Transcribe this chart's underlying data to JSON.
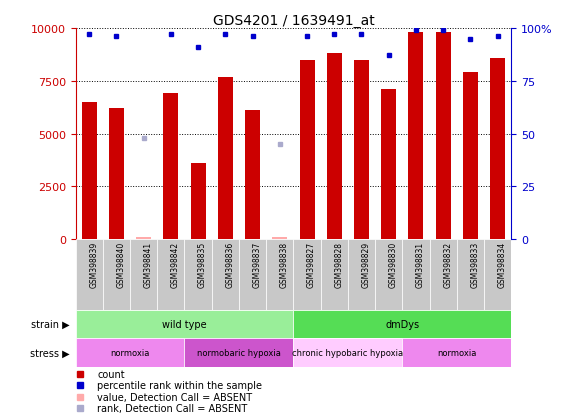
{
  "title": "GDS4201 / 1639491_at",
  "samples": [
    "GSM398839",
    "GSM398840",
    "GSM398841",
    "GSM398842",
    "GSM398835",
    "GSM398836",
    "GSM398837",
    "GSM398838",
    "GSM398827",
    "GSM398828",
    "GSM398829",
    "GSM398830",
    "GSM398831",
    "GSM398832",
    "GSM398833",
    "GSM398834"
  ],
  "counts": [
    6500,
    6200,
    80,
    6900,
    3600,
    7700,
    6100,
    80,
    8500,
    8800,
    8500,
    7100,
    9800,
    9800,
    7900,
    8600
  ],
  "absent_counts": [
    null,
    null,
    80,
    null,
    null,
    null,
    null,
    80,
    null,
    null,
    null,
    null,
    null,
    null,
    null,
    null
  ],
  "percentile_ranks": [
    97,
    96,
    null,
    97,
    91,
    97,
    96,
    null,
    96,
    97,
    97,
    87,
    99,
    99,
    95,
    96
  ],
  "absent_ranks": [
    null,
    null,
    48,
    null,
    null,
    null,
    null,
    45,
    null,
    null,
    null,
    null,
    null,
    null,
    null,
    null
  ],
  "ylim_left": [
    0,
    10000
  ],
  "ylim_right": [
    0,
    100
  ],
  "yticks_left": [
    0,
    2500,
    5000,
    7500,
    10000
  ],
  "yticks_left_labels": [
    "0",
    "2500",
    "5000",
    "7500",
    "10000"
  ],
  "yticks_right": [
    0,
    25,
    50,
    75,
    100
  ],
  "yticks_right_labels": [
    "0",
    "25",
    "50",
    "75",
    "100%"
  ],
  "bar_color": "#cc0000",
  "absent_bar_color": "#ffaaaa",
  "rank_color": "#0000cc",
  "absent_rank_color": "#aaaacc",
  "tick_bg_color": "#c8c8c8",
  "strain_groups": [
    {
      "label": "wild type",
      "start": 0,
      "end": 8,
      "color": "#99ee99"
    },
    {
      "label": "dmDys",
      "start": 8,
      "end": 16,
      "color": "#55dd55"
    }
  ],
  "stress_groups": [
    {
      "label": "normoxia",
      "start": 0,
      "end": 4,
      "color": "#ee88ee"
    },
    {
      "label": "normobaric hypoxia",
      "start": 4,
      "end": 8,
      "color": "#cc55cc"
    },
    {
      "label": "chronic hypobaric hypoxia",
      "start": 8,
      "end": 12,
      "color": "#ffccff"
    },
    {
      "label": "normoxia",
      "start": 12,
      "end": 16,
      "color": "#ee88ee"
    }
  ],
  "legend_items": [
    {
      "label": "count",
      "color": "#cc0000"
    },
    {
      "label": "percentile rank within the sample",
      "color": "#0000cc"
    },
    {
      "label": "value, Detection Call = ABSENT",
      "color": "#ffaaaa"
    },
    {
      "label": "rank, Detection Call = ABSENT",
      "color": "#aaaacc"
    }
  ]
}
